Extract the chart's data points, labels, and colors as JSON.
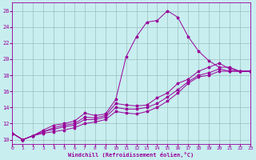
{
  "xlabel": "Windchill (Refroidissement éolien,°C)",
  "bg_color": "#c8eef0",
  "grid_color": "#9bbfbf",
  "line_color": "#990099",
  "xmin": 0,
  "xmax": 23,
  "ymin": 9.5,
  "ymax": 27,
  "yticks": [
    10,
    12,
    14,
    16,
    18,
    20,
    22,
    24,
    26
  ],
  "curve1_x": [
    0,
    1,
    2,
    3,
    4,
    5,
    6,
    7,
    8,
    9,
    10,
    11,
    12,
    13,
    14,
    15,
    16,
    17,
    18,
    19,
    20,
    21,
    22,
    23
  ],
  "curve1_y": [
    10.8,
    10.0,
    10.5,
    11.2,
    11.8,
    12.0,
    12.3,
    13.3,
    13.0,
    13.2,
    15.0,
    20.3,
    22.8,
    24.6,
    24.8,
    26.0,
    25.2,
    22.8,
    21.0,
    19.8,
    19.0,
    19.0,
    18.5,
    18.5
  ],
  "curve2_x": [
    0,
    1,
    2,
    3,
    4,
    5,
    6,
    7,
    8,
    9,
    10,
    11,
    12,
    13,
    14,
    15,
    16,
    17,
    18,
    19,
    20,
    21,
    22,
    23
  ],
  "curve2_y": [
    10.8,
    10.0,
    10.5,
    11.0,
    11.5,
    11.8,
    12.0,
    12.8,
    12.7,
    13.0,
    14.5,
    14.3,
    14.2,
    14.3,
    15.2,
    15.8,
    17.0,
    17.5,
    18.5,
    19.0,
    19.5,
    18.8,
    18.5,
    18.5
  ],
  "curve3_x": [
    0,
    1,
    2,
    3,
    4,
    5,
    6,
    7,
    8,
    9,
    10,
    11,
    12,
    13,
    14,
    15,
    16,
    17,
    18,
    19,
    20,
    21,
    22,
    23
  ],
  "curve3_y": [
    10.8,
    10.0,
    10.5,
    11.0,
    11.3,
    11.6,
    11.8,
    12.5,
    12.5,
    12.8,
    14.0,
    13.8,
    13.8,
    14.0,
    14.5,
    15.3,
    16.2,
    17.2,
    18.0,
    18.3,
    18.8,
    18.5,
    18.5,
    18.5
  ],
  "curve4_x": [
    0,
    1,
    2,
    3,
    4,
    5,
    6,
    7,
    8,
    9,
    10,
    11,
    12,
    13,
    14,
    15,
    16,
    17,
    18,
    19,
    20,
    21,
    22,
    23
  ],
  "curve4_y": [
    10.8,
    10.0,
    10.5,
    10.8,
    11.0,
    11.2,
    11.5,
    12.0,
    12.2,
    12.5,
    13.5,
    13.3,
    13.2,
    13.5,
    14.0,
    14.8,
    15.8,
    17.0,
    17.8,
    18.0,
    18.5,
    18.5,
    18.5,
    18.5
  ]
}
